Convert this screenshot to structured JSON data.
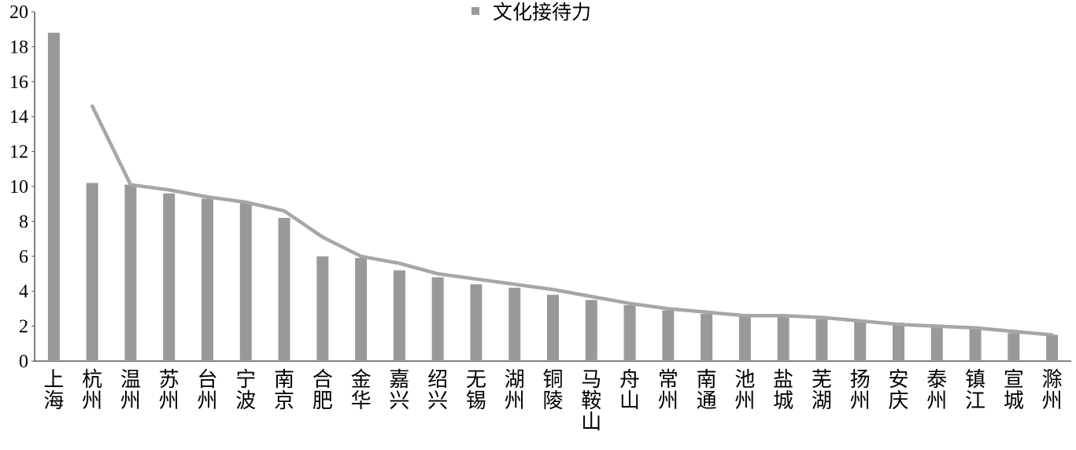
{
  "chart_data": {
    "type": "bar",
    "categories": [
      "上海",
      "杭州",
      "温州",
      "苏州",
      "台州",
      "宁波",
      "南京",
      "合肥",
      "金华",
      "嘉兴",
      "绍兴",
      "无锡",
      "湖州",
      "铜陵",
      "马鞍山",
      "舟山",
      "常州",
      "南通",
      "池州",
      "盐城",
      "芜湖",
      "扬州",
      "安庆",
      "泰州",
      "镇江",
      "宣城",
      "滁州"
    ],
    "series": [
      {
        "name": "文化接待力",
        "type": "bar",
        "values": [
          18.8,
          10.2,
          10.1,
          9.6,
          9.3,
          9.1,
          8.2,
          6.0,
          5.9,
          5.2,
          4.8,
          4.4,
          4.2,
          3.8,
          3.5,
          3.2,
          2.9,
          2.7,
          2.6,
          2.5,
          2.4,
          2.3,
          2.2,
          2.1,
          1.9,
          1.6,
          1.5
        ]
      },
      {
        "type": "line",
        "values": [
          null,
          14.6,
          10.1,
          9.8,
          9.4,
          9.1,
          8.6,
          7.1,
          6.0,
          5.6,
          5.0,
          4.7,
          4.4,
          4.1,
          3.7,
          3.3,
          3.0,
          2.8,
          2.6,
          2.6,
          2.5,
          2.3,
          2.1,
          2.0,
          1.9,
          1.7,
          1.5
        ]
      }
    ],
    "ylim": [
      0,
      20
    ],
    "yticks": [
      0,
      2,
      4,
      6,
      8,
      10,
      12,
      14,
      16,
      18,
      20
    ],
    "bar_color": "#999999",
    "line_color": "#a6a6a6",
    "legend_position": "top-center",
    "grid": false
  }
}
